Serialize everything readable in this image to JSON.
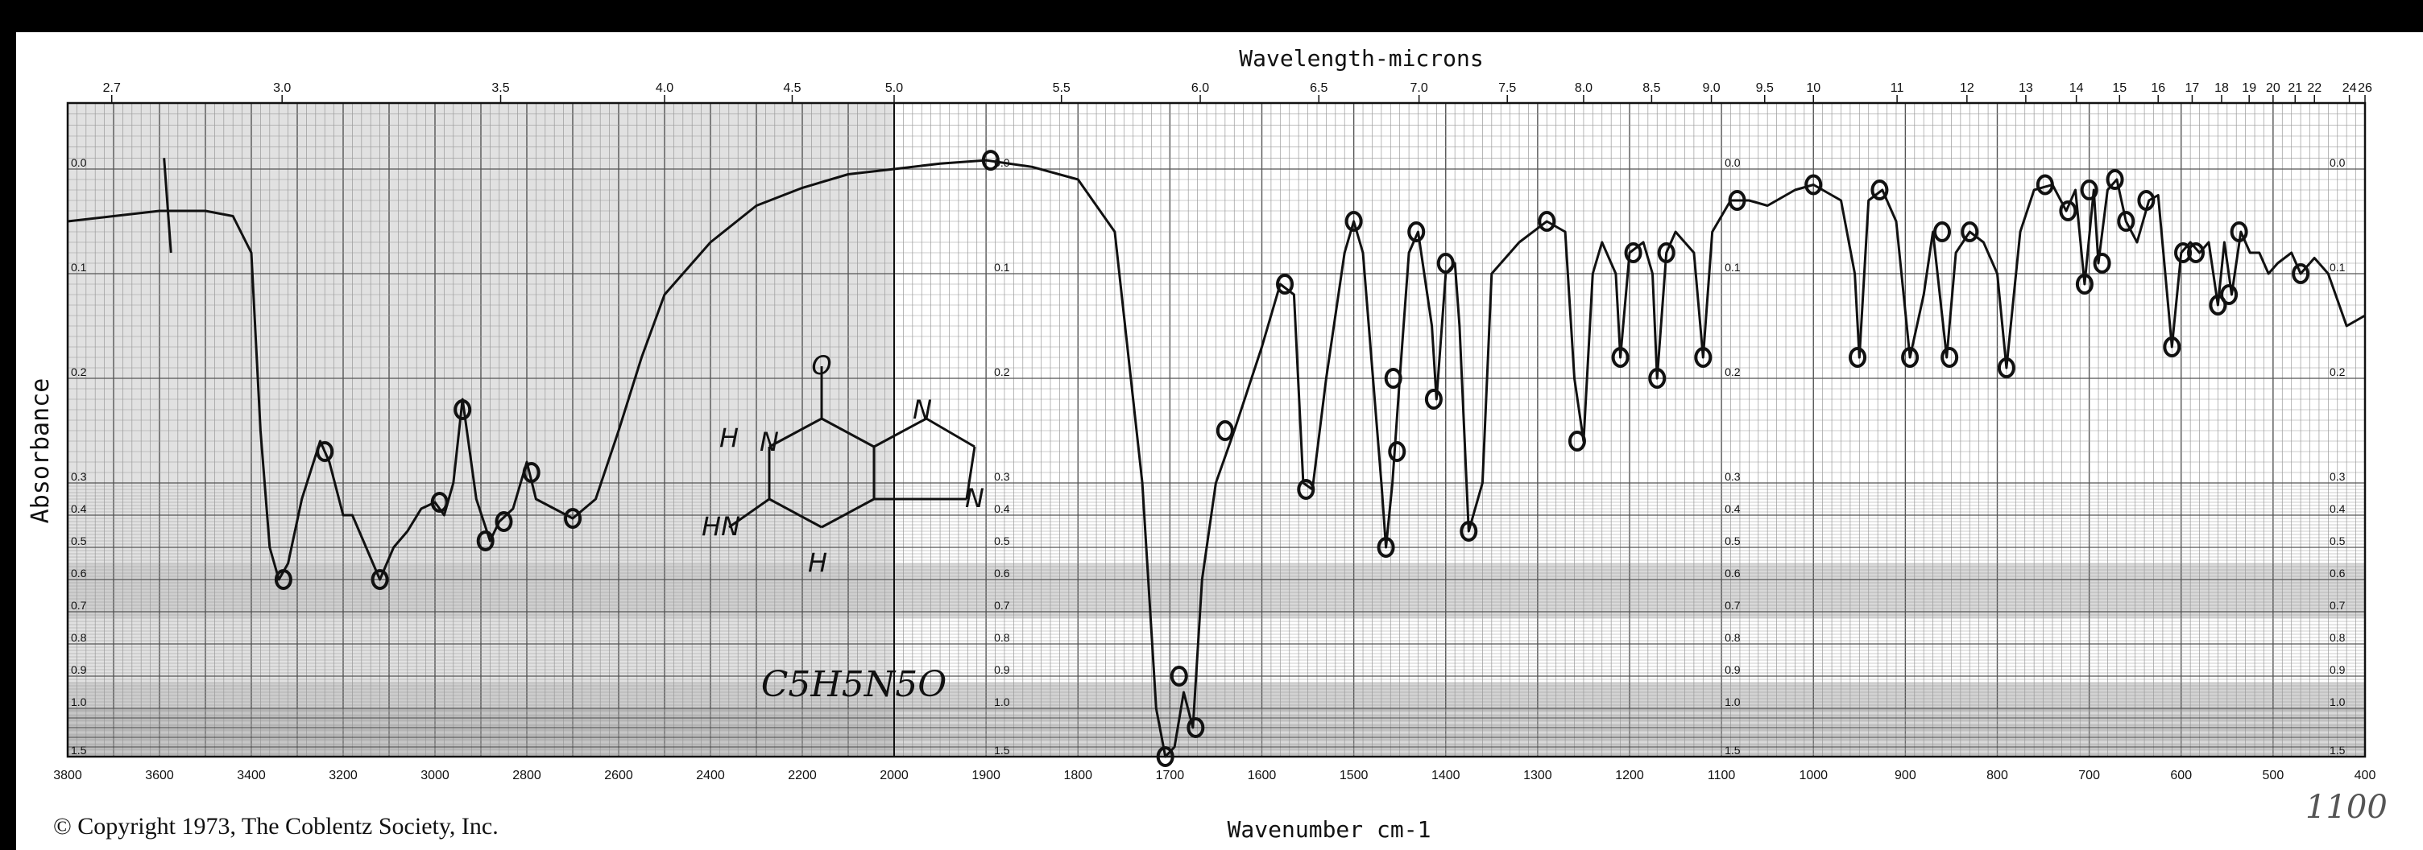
{
  "copyright": "© Copyright 1973, The Coblentz Society, Inc.",
  "handwritten_note": "1100",
  "molecule": {
    "formula": "C5H5N5O",
    "atoms": [
      "O",
      "N",
      "H",
      "N",
      "HN",
      "N",
      "H"
    ]
  },
  "colors": {
    "ink": "#111111",
    "grid_light": "#9a9a9a",
    "grid_dark": "#555555",
    "shade": "#c8c8c8"
  },
  "chart_data": {
    "type": "line",
    "title": "",
    "top_axis_label": "Wavelength-microns",
    "xlabel": "Wavenumber cm-1",
    "ylabel": "Absorbance",
    "x_reversed": true,
    "y_reversed": true,
    "grid": true,
    "x_ticks": [
      3800,
      3600,
      3400,
      3200,
      3000,
      2800,
      2600,
      2400,
      2200,
      2000,
      1900,
      1800,
      1700,
      1600,
      1500,
      1400,
      1300,
      1200,
      1100,
      1000,
      900,
      800,
      700,
      600,
      500,
      400
    ],
    "top_ticks": [
      {
        "label": "2.7",
        "x": 3704
      },
      {
        "label": "3.0",
        "x": 3333
      },
      {
        "label": "3.5",
        "x": 2857
      },
      {
        "label": "4.0",
        "x": 2500
      },
      {
        "label": "4.5",
        "x": 2222
      },
      {
        "label": "5.0",
        "x": 2000
      },
      {
        "label": "5.5",
        "x": 1818
      },
      {
        "label": "6.0",
        "x": 1667
      },
      {
        "label": "6.5",
        "x": 1538
      },
      {
        "label": "7.0",
        "x": 1429
      },
      {
        "label": "7.5",
        "x": 1333
      },
      {
        "label": "8.0",
        "x": 1250
      },
      {
        "label": "8.5",
        "x": 1176
      },
      {
        "label": "9.0",
        "x": 1111
      },
      {
        "label": "9.5",
        "x": 1053
      },
      {
        "label": "10",
        "x": 1000
      },
      {
        "label": "11",
        "x": 909
      },
      {
        "label": "12",
        "x": 833
      },
      {
        "label": "13",
        "x": 769
      },
      {
        "label": "14",
        "x": 714
      },
      {
        "label": "15",
        "x": 667
      },
      {
        "label": "16",
        "x": 625
      },
      {
        "label": "17",
        "x": 588
      },
      {
        "label": "18",
        "x": 556
      },
      {
        "label": "19",
        "x": 526
      },
      {
        "label": "20",
        "x": 500
      },
      {
        "label": "21",
        "x": 476
      },
      {
        "label": "22",
        "x": 455
      },
      {
        "label": "24",
        "x": 417
      },
      {
        "label": "26",
        "x": 385
      }
    ],
    "y_ticks": [
      "0.0",
      "0.1",
      "0.2",
      "0.3",
      "0.4",
      "0.5",
      "0.6",
      "0.7",
      "0.8",
      "0.9",
      "1.0",
      "1.5"
    ],
    "series": [
      {
        "points": [
          [
            3800,
            0.05
          ],
          [
            3700,
            0.045
          ],
          [
            3600,
            0.04
          ],
          [
            3500,
            0.04
          ],
          [
            3440,
            0.045
          ],
          [
            3400,
            0.08
          ],
          [
            3380,
            0.25
          ],
          [
            3360,
            0.5
          ],
          [
            3340,
            0.6
          ],
          [
            3320,
            0.55
          ],
          [
            3290,
            0.35
          ],
          [
            3250,
            0.26
          ],
          [
            3230,
            0.28
          ],
          [
            3200,
            0.4
          ],
          [
            3180,
            0.4
          ],
          [
            3150,
            0.5
          ],
          [
            3120,
            0.6
          ],
          [
            3090,
            0.5
          ],
          [
            3060,
            0.45
          ],
          [
            3030,
            0.38
          ],
          [
            3000,
            0.36
          ],
          [
            2980,
            0.4
          ],
          [
            2960,
            0.3
          ],
          [
            2940,
            0.22
          ],
          [
            2910,
            0.35
          ],
          [
            2880,
            0.48
          ],
          [
            2860,
            0.42
          ],
          [
            2830,
            0.38
          ],
          [
            2800,
            0.28
          ],
          [
            2780,
            0.35
          ],
          [
            2740,
            0.38
          ],
          [
            2700,
            0.41
          ],
          [
            2650,
            0.35
          ],
          [
            2600,
            0.25
          ],
          [
            2550,
            0.18
          ],
          [
            2500,
            0.12
          ],
          [
            2400,
            0.07
          ],
          [
            2300,
            0.035
          ],
          [
            2200,
            0.018
          ],
          [
            2100,
            0.005
          ],
          [
            2000,
            0.0
          ],
          [
            1950,
            -0.005
          ],
          [
            1900,
            -0.008
          ],
          [
            1850,
            -0.002
          ],
          [
            1800,
            0.01
          ],
          [
            1760,
            0.06
          ],
          [
            1730,
            0.3
          ],
          [
            1715,
            1.0
          ],
          [
            1705,
            1.5
          ],
          [
            1695,
            1.4
          ],
          [
            1685,
            0.95
          ],
          [
            1675,
            1.2
          ],
          [
            1665,
            0.6
          ],
          [
            1650,
            0.3
          ],
          [
            1630,
            0.25
          ],
          [
            1600,
            0.17
          ],
          [
            1580,
            0.11
          ],
          [
            1565,
            0.12
          ],
          [
            1555,
            0.3
          ],
          [
            1545,
            0.32
          ],
          [
            1530,
            0.2
          ],
          [
            1510,
            0.08
          ],
          [
            1500,
            0.05
          ],
          [
            1490,
            0.08
          ],
          [
            1470,
            0.3
          ],
          [
            1465,
            0.5
          ],
          [
            1458,
            0.3
          ],
          [
            1450,
            0.2
          ],
          [
            1440,
            0.08
          ],
          [
            1430,
            0.06
          ],
          [
            1415,
            0.15
          ],
          [
            1410,
            0.22
          ],
          [
            1400,
            0.1
          ],
          [
            1390,
            0.09
          ],
          [
            1385,
            0.15
          ],
          [
            1375,
            0.45
          ],
          [
            1360,
            0.3
          ],
          [
            1350,
            0.1
          ],
          [
            1320,
            0.07
          ],
          [
            1290,
            0.05
          ],
          [
            1270,
            0.06
          ],
          [
            1260,
            0.2
          ],
          [
            1250,
            0.26
          ],
          [
            1240,
            0.1
          ],
          [
            1230,
            0.07
          ],
          [
            1215,
            0.1
          ],
          [
            1210,
            0.18
          ],
          [
            1200,
            0.08
          ],
          [
            1185,
            0.07
          ],
          [
            1175,
            0.1
          ],
          [
            1170,
            0.2
          ],
          [
            1160,
            0.08
          ],
          [
            1150,
            0.06
          ],
          [
            1130,
            0.08
          ],
          [
            1120,
            0.18
          ],
          [
            1110,
            0.06
          ],
          [
            1090,
            0.03
          ],
          [
            1070,
            0.03
          ],
          [
            1050,
            0.035
          ],
          [
            1020,
            0.02
          ],
          [
            1000,
            0.015
          ],
          [
            970,
            0.03
          ],
          [
            955,
            0.1
          ],
          [
            950,
            0.18
          ],
          [
            940,
            0.03
          ],
          [
            925,
            0.02
          ],
          [
            910,
            0.05
          ],
          [
            895,
            0.18
          ],
          [
            880,
            0.12
          ],
          [
            870,
            0.06
          ],
          [
            855,
            0.18
          ],
          [
            845,
            0.08
          ],
          [
            830,
            0.06
          ],
          [
            815,
            0.07
          ],
          [
            800,
            0.1
          ],
          [
            790,
            0.19
          ],
          [
            775,
            0.06
          ],
          [
            760,
            0.02
          ],
          [
            740,
            0.015
          ],
          [
            725,
            0.04
          ],
          [
            715,
            0.02
          ],
          [
            705,
            0.11
          ],
          [
            695,
            0.02
          ],
          [
            690,
            0.09
          ],
          [
            680,
            0.02
          ],
          [
            670,
            0.01
          ],
          [
            660,
            0.05
          ],
          [
            648,
            0.07
          ],
          [
            635,
            0.03
          ],
          [
            625,
            0.025
          ],
          [
            610,
            0.17
          ],
          [
            600,
            0.08
          ],
          [
            590,
            0.07
          ],
          [
            580,
            0.08
          ],
          [
            570,
            0.07
          ],
          [
            560,
            0.13
          ],
          [
            553,
            0.07
          ],
          [
            545,
            0.12
          ],
          [
            535,
            0.06
          ],
          [
            525,
            0.08
          ],
          [
            515,
            0.08
          ],
          [
            505,
            0.1
          ],
          [
            495,
            0.09
          ],
          [
            480,
            0.08
          ],
          [
            470,
            0.1
          ],
          [
            455,
            0.085
          ],
          [
            440,
            0.1
          ],
          [
            420,
            0.15
          ],
          [
            400,
            0.14
          ]
        ]
      }
    ],
    "peak_markers": [
      [
        3330,
        0.6
      ],
      [
        3240,
        0.27
      ],
      [
        3120,
        0.6
      ],
      [
        2940,
        0.23
      ],
      [
        2990,
        0.36
      ],
      [
        2890,
        0.48
      ],
      [
        2850,
        0.42
      ],
      [
        2790,
        0.29
      ],
      [
        2700,
        0.41
      ],
      [
        1895,
        -0.008
      ],
      [
        1705,
        1.5
      ],
      [
        1690,
        0.9
      ],
      [
        1672,
        1.2
      ],
      [
        1640,
        0.25
      ],
      [
        1575,
        0.11
      ],
      [
        1552,
        0.32
      ],
      [
        1500,
        0.05
      ],
      [
        1465,
        0.5
      ],
      [
        1457,
        0.2
      ],
      [
        1453,
        0.27
      ],
      [
        1432,
        0.06
      ],
      [
        1413,
        0.22
      ],
      [
        1400,
        0.09
      ],
      [
        1375,
        0.45
      ],
      [
        1290,
        0.05
      ],
      [
        1257,
        0.26
      ],
      [
        1210,
        0.18
      ],
      [
        1196,
        0.08
      ],
      [
        1170,
        0.2
      ],
      [
        1160,
        0.08
      ],
      [
        1120,
        0.18
      ],
      [
        1083,
        0.03
      ],
      [
        1000,
        0.015
      ],
      [
        952,
        0.18
      ],
      [
        928,
        0.02
      ],
      [
        895,
        0.18
      ],
      [
        860,
        0.06
      ],
      [
        852,
        0.18
      ],
      [
        830,
        0.06
      ],
      [
        790,
        0.19
      ],
      [
        748,
        0.015
      ],
      [
        723,
        0.04
      ],
      [
        705,
        0.11
      ],
      [
        700,
        0.02
      ],
      [
        686,
        0.09
      ],
      [
        672,
        0.01
      ],
      [
        660,
        0.05
      ],
      [
        638,
        0.03
      ],
      [
        610,
        0.17
      ],
      [
        598,
        0.08
      ],
      [
        584,
        0.08
      ],
      [
        560,
        0.13
      ],
      [
        548,
        0.12
      ],
      [
        537,
        0.06
      ],
      [
        470,
        0.1
      ]
    ]
  }
}
